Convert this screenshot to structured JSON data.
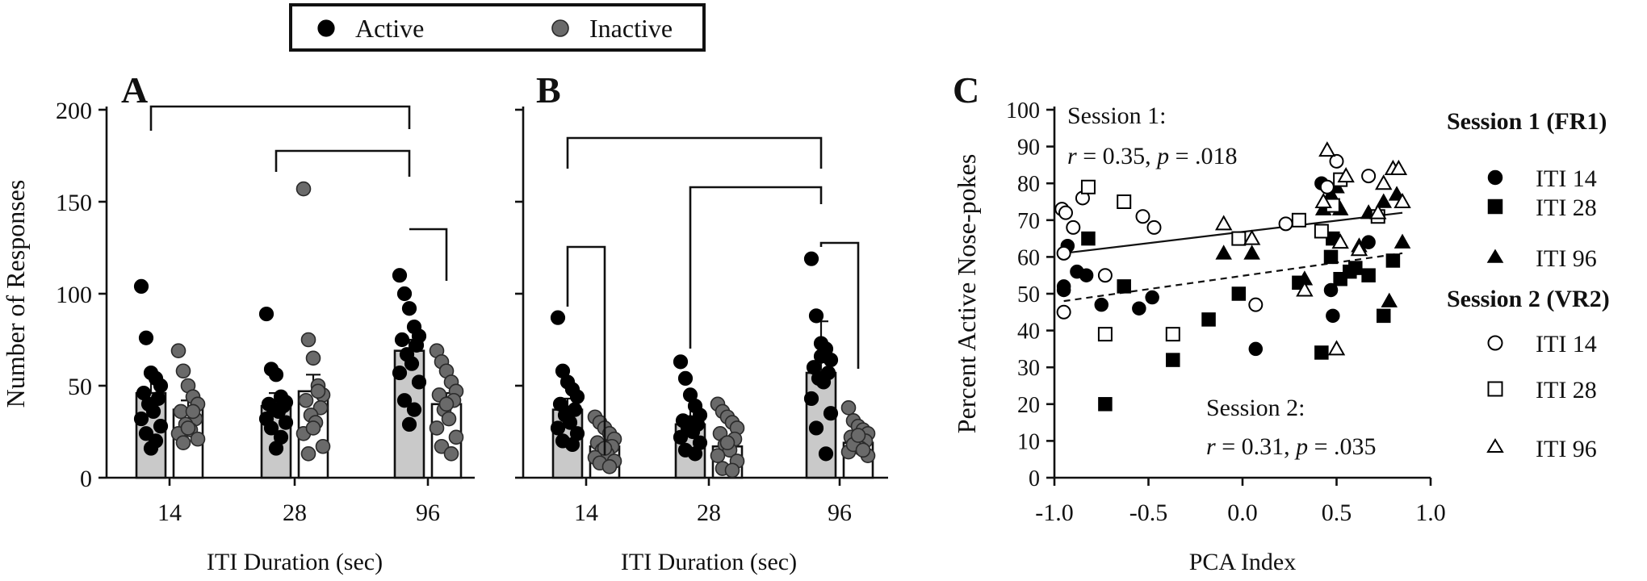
{
  "legend_top": {
    "items": [
      {
        "label": "Active",
        "color": "#000000"
      },
      {
        "label": "Inactive",
        "color": "#6a6a6a"
      }
    ]
  },
  "chart_data": [
    {
      "id": "A",
      "panel_label": "A",
      "type": "bar",
      "xlabel": "ITI Duration (sec)",
      "ylabel": "Number of Responses",
      "ylim": [
        0,
        200
      ],
      "yticks": [
        "0",
        "50",
        "100",
        "150",
        "200"
      ],
      "categories": [
        "14",
        "28",
        "96"
      ],
      "series": [
        {
          "name": "Active",
          "means": [
            46,
            39,
            69
          ],
          "errors": [
            11,
            7,
            6
          ],
          "points": [
            [
              104,
              76,
              57,
              54,
              50,
              46,
              43,
              40,
              36,
              32,
              28,
              24,
              20,
              16
            ],
            [
              89,
              59,
              56,
              44,
              41,
              40,
              39,
              37,
              36,
              32,
              30,
              27,
              22,
              16
            ],
            [
              110,
              100,
              92,
              82,
              77,
              75,
              72,
              67,
              62,
              57,
              52,
              42,
              37,
              29
            ]
          ]
        },
        {
          "name": "Inactive",
          "means": [
            37,
            47,
            40
          ],
          "errors": [
            5,
            9,
            6
          ],
          "points": [
            [
              69,
              58,
              50,
              44,
              40,
              36,
              32,
              29,
              26,
              24,
              21,
              19,
              36,
              27
            ],
            [
              157,
              75,
              65,
              50,
              45,
              42,
              38,
              34,
              30,
              24,
              17,
              13,
              47,
              27
            ],
            [
              69,
              63,
              58,
              52,
              47,
              45,
              42,
              37,
              32,
              27,
              22,
              17,
              13,
              40
            ]
          ]
        }
      ],
      "brackets": [
        {
          "from": "14 Active",
          "to": "96 Active"
        },
        {
          "from": "28 Active",
          "to": "96 Active"
        },
        {
          "from": "96 Active",
          "to": "96 Inactive"
        }
      ]
    },
    {
      "id": "B",
      "panel_label": "B",
      "type": "bar",
      "xlabel": "ITI Duration (sec)",
      "ylabel": "",
      "ylim": [
        0,
        200
      ],
      "categories": [
        "14",
        "28",
        "96"
      ],
      "series": [
        {
          "name": "Active",
          "means": [
            37,
            29,
            57
          ],
          "errors": [
            6,
            16,
            28
          ],
          "points": [
            [
              87,
              58,
              52,
              48,
              44,
              40,
              37,
              34,
              30,
              27,
              24,
              20,
              18,
              35
            ],
            [
              63,
              54,
              45,
              39,
              34,
              31,
              29,
              27,
              25,
              22,
              19,
              15,
              13,
              30
            ],
            [
              119,
              88,
              73,
              70,
              64,
              60,
              57,
              54,
              52,
              43,
              35,
              27,
              13,
              66
            ]
          ]
        },
        {
          "name": "Inactive",
          "means": [
            17,
            17,
            19
          ],
          "errors": [
            3,
            4,
            3
          ],
          "points": [
            [
              33,
              30,
              27,
              24,
              21,
              19,
              17,
              15,
              13,
              11,
              9,
              8,
              6,
              16
            ],
            [
              40,
              36,
              33,
              30,
              27,
              24,
              21,
              18,
              15,
              12,
              9,
              5,
              4,
              19
            ],
            [
              38,
              31,
              28,
              26,
              24,
              22,
              20,
              18,
              16,
              14,
              12,
              18,
              15,
              23
            ]
          ]
        }
      ],
      "brackets": [
        {
          "from": "14 Active",
          "to": "96 Active"
        },
        {
          "from": "28 Active",
          "to": "96 Active"
        },
        {
          "from": "14 Active",
          "to": "14 Inactive"
        },
        {
          "from": "96 Active",
          "to": "96 Inactive"
        }
      ]
    },
    {
      "id": "C",
      "panel_label": "C",
      "type": "scatter",
      "xlabel": "PCA Index",
      "ylabel": "Percent Active Nose-pokes",
      "xlim": [
        -1.0,
        1.0
      ],
      "ylim": [
        0,
        100
      ],
      "xticks": [
        "-1.0",
        "-0.5",
        "0.0",
        "0.5",
        "1.0"
      ],
      "yticks": [
        "0",
        "10",
        "20",
        "30",
        "40",
        "50",
        "60",
        "70",
        "80",
        "90",
        "100"
      ],
      "annotations": {
        "session1_title": "Session 1:",
        "session1_r_sym": "r",
        "session1_r_val": " = 0.35, ",
        "session1_p_sym": "p",
        "session1_p_val": " = .018",
        "session2_title": "Session 2:",
        "session2_r_sym": "r",
        "session2_r_val": " = 0.31, ",
        "session2_p_sym": "p",
        "session2_p_val": " = .035"
      },
      "fits": [
        {
          "name": "Session 1",
          "style": "solid",
          "x": [
            -0.95,
            0.85
          ],
          "y": [
            61,
            72
          ]
        },
        {
          "name": "Session 2",
          "style": "dashed",
          "x": [
            -0.95,
            0.85
          ],
          "y": [
            48,
            61
          ]
        }
      ],
      "legend": {
        "session1_header": "Session 1 (FR1)",
        "session2_header": "Session 2 (VR2)",
        "items": [
          "ITI 14",
          "ITI 28",
          "ITI 96",
          "ITI 14",
          "ITI 28",
          "ITI 96"
        ]
      },
      "series": [
        {
          "name": "Session 1 ITI 14",
          "marker": "circle",
          "filled": true,
          "x": [
            -0.95,
            -0.93,
            -0.88,
            -0.83,
            -0.75,
            -0.55,
            -0.48,
            0.07,
            0.42,
            0.47,
            0.48,
            0.67,
            -0.95
          ],
          "y": [
            51,
            63,
            56,
            55,
            47,
            46,
            49,
            35,
            80,
            51,
            44,
            64,
            52
          ]
        },
        {
          "name": "Session 1 ITI 28",
          "marker": "square",
          "filled": true,
          "x": [
            -0.82,
            -0.73,
            -0.63,
            -0.37,
            -0.18,
            -0.02,
            0.3,
            0.42,
            0.47,
            0.52,
            0.6,
            0.67,
            0.75,
            0.8,
            0.48,
            0.57
          ],
          "y": [
            65,
            20,
            52,
            32,
            43,
            50,
            53,
            34,
            60,
            54,
            57,
            55,
            44,
            59,
            65,
            56
          ]
        },
        {
          "name": "Session 1 ITI 96",
          "marker": "triangle",
          "filled": true,
          "x": [
            -0.1,
            0.05,
            0.33,
            0.43,
            0.5,
            0.52,
            0.62,
            0.67,
            0.75,
            0.78,
            0.82,
            0.85,
            0.47
          ],
          "y": [
            61,
            61,
            54,
            73,
            79,
            73,
            63,
            72,
            75,
            48,
            77,
            64,
            77
          ]
        },
        {
          "name": "Session 2 ITI 14",
          "marker": "circle",
          "filled": false,
          "x": [
            -0.96,
            -0.95,
            -0.95,
            -0.9,
            -0.85,
            -0.73,
            -0.53,
            -0.47,
            0.07,
            0.23,
            0.45,
            0.5,
            0.67,
            -0.94
          ],
          "y": [
            73,
            61,
            45,
            68,
            76,
            55,
            71,
            68,
            47,
            69,
            79,
            86,
            82,
            72
          ]
        },
        {
          "name": "Session 2 ITI 28",
          "marker": "square",
          "filled": false,
          "x": [
            -0.82,
            -0.73,
            -0.63,
            -0.37,
            -0.02,
            0.3,
            0.42,
            0.48,
            0.52,
            0.72
          ],
          "y": [
            79,
            39,
            75,
            39,
            65,
            70,
            67,
            74,
            81,
            71
          ]
        },
        {
          "name": "Session 2 ITI 96",
          "marker": "triangle",
          "filled": false,
          "x": [
            -0.1,
            0.05,
            0.33,
            0.43,
            0.45,
            0.5,
            0.55,
            0.62,
            0.72,
            0.75,
            0.8,
            0.83,
            0.85,
            0.52
          ],
          "y": [
            69,
            65,
            51,
            75,
            89,
            35,
            82,
            62,
            72,
            80,
            84,
            84,
            75,
            64
          ]
        }
      ]
    }
  ]
}
